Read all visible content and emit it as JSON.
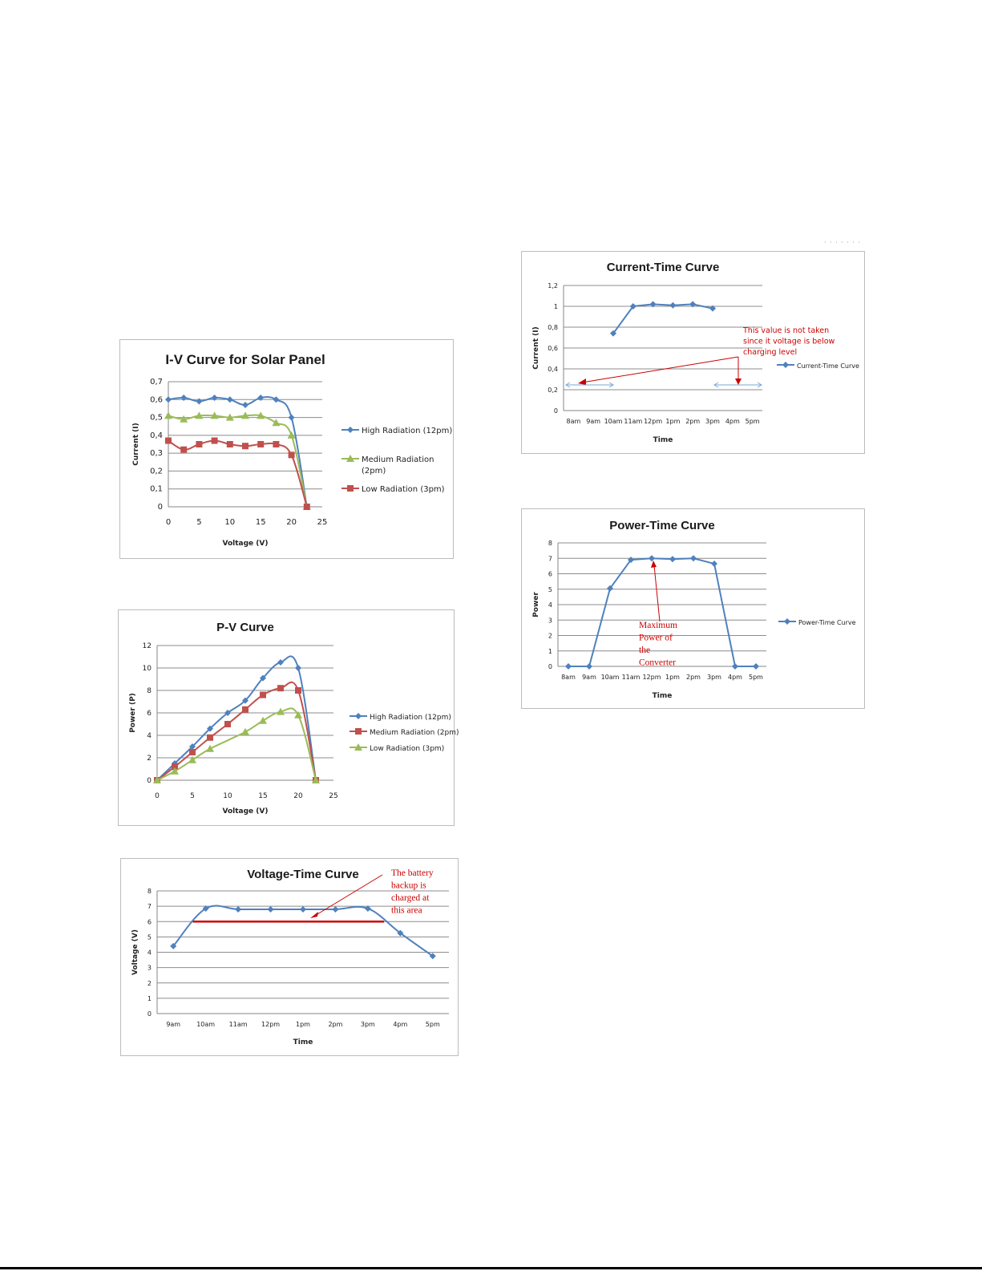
{
  "page_mark": "· · · · · · ·",
  "chart_data": [
    {
      "id": "iv",
      "type": "line",
      "title": "I-V Curve for Solar Panel",
      "xlabel": "Voltage (V)",
      "ylabel": "Current (I)",
      "xlim": [
        0,
        25
      ],
      "ylim": [
        0,
        0.7
      ],
      "xticks": [
        "0",
        "5",
        "10",
        "15",
        "20",
        "25"
      ],
      "yticks": [
        "0",
        "0,1",
        "0,2",
        "0,3",
        "0,4",
        "0,5",
        "0,6",
        "0,7"
      ],
      "grid": true,
      "legend": "right",
      "series": [
        {
          "name": "High Radiation (12pm)",
          "color": "#4f81bd",
          "marker": "diamond",
          "x": [
            0,
            2.5,
            5,
            7.5,
            10,
            12.5,
            15,
            17.5,
            20,
            22.5
          ],
          "y": [
            0.6,
            0.61,
            0.59,
            0.61,
            0.6,
            0.57,
            0.61,
            0.6,
            0.5,
            0
          ]
        },
        {
          "name": "Medium Radiation (2pm)",
          "color": "#9bbb59",
          "marker": "triangle",
          "x": [
            0,
            2.5,
            5,
            7.5,
            10,
            12.5,
            15,
            17.5,
            20,
            22.5
          ],
          "y": [
            0.51,
            0.49,
            0.51,
            0.51,
            0.5,
            0.51,
            0.51,
            0.47,
            0.4,
            0
          ]
        },
        {
          "name": "Low Radiation (3pm)",
          "color": "#c0504d",
          "marker": "square",
          "x": [
            0,
            2.5,
            5,
            7.5,
            10,
            12.5,
            15,
            17.5,
            20,
            22.5
          ],
          "y": [
            0.37,
            0.32,
            0.35,
            0.37,
            0.35,
            0.34,
            0.35,
            0.35,
            0.29,
            0
          ]
        }
      ]
    },
    {
      "id": "pv",
      "type": "line",
      "title": "P-V Curve",
      "xlabel": "Voltage (V)",
      "ylabel": "Power (P)",
      "xlim": [
        0,
        25
      ],
      "ylim": [
        0,
        12
      ],
      "xticks": [
        "0",
        "5",
        "10",
        "15",
        "20",
        "25"
      ],
      "yticks": [
        "0",
        "2",
        "4",
        "6",
        "8",
        "10",
        "12"
      ],
      "grid": true,
      "legend": "right",
      "series": [
        {
          "name": "High Radiation (12pm)",
          "color": "#4f81bd",
          "marker": "diamond",
          "x": [
            0,
            2.5,
            5,
            7.5,
            10,
            12.5,
            15,
            17.5,
            20,
            22.5
          ],
          "y": [
            0,
            1.5,
            3,
            4.6,
            6,
            7.1,
            9.1,
            10.5,
            10,
            0
          ]
        },
        {
          "name": "Medium Radiation (2pm)",
          "color": "#c0504d",
          "marker": "square",
          "x": [
            0,
            2.5,
            5,
            7.5,
            10,
            12.5,
            15,
            17.5,
            20,
            22.5
          ],
          "y": [
            0,
            1.2,
            2.5,
            3.8,
            5,
            6.3,
            7.6,
            8.2,
            8,
            0
          ]
        },
        {
          "name": "Low Radiation (3pm)",
          "color": "#9bbb59",
          "marker": "triangle",
          "x": [
            0,
            2.5,
            5,
            7.5,
            12.5,
            15,
            17.5,
            20,
            22.5
          ],
          "y": [
            0,
            0.8,
            1.8,
            2.8,
            4.3,
            5.3,
            6.1,
            5.8,
            0
          ]
        }
      ]
    },
    {
      "id": "vt",
      "type": "line",
      "title": "Voltage-Time Curve",
      "xlabel": "Time",
      "ylabel": "Voltage (V)",
      "categories": [
        "9am",
        "10am",
        "11am",
        "12pm",
        "1pm",
        "2pm",
        "3pm",
        "4pm",
        "5pm"
      ],
      "ylim": [
        0,
        8
      ],
      "yticks": [
        "0",
        "1",
        "2",
        "3",
        "4",
        "5",
        "6",
        "7",
        "8"
      ],
      "grid": true,
      "legend": "none",
      "series": [
        {
          "color": "#4f81bd",
          "marker": "diamond",
          "values": [
            4.4,
            6.85,
            6.8,
            6.8,
            6.8,
            6.8,
            6.85,
            5.25,
            3.75
          ]
        }
      ],
      "reference_line": {
        "y": 6,
        "color": "#cc0000"
      },
      "annotation": "The battery backup is charged at this area"
    },
    {
      "id": "ct",
      "type": "line",
      "title": "Current-Time Curve",
      "xlabel": "Time",
      "ylabel": "Current (I)",
      "categories": [
        "8am",
        "9am",
        "10am",
        "11am",
        "12pm",
        "1pm",
        "2pm",
        "3pm",
        "4pm",
        "5pm"
      ],
      "ylim": [
        0,
        1.2
      ],
      "yticks": [
        "0",
        "0,2",
        "0,4",
        "0,6",
        "0,8",
        "1",
        "1,2"
      ],
      "grid": true,
      "legend": "right",
      "series": [
        {
          "name": "Current-Time Curve",
          "color": "#4f81bd",
          "marker": "diamond",
          "values": [
            null,
            null,
            0.74,
            1.0,
            1.02,
            1.01,
            1.02,
            0.98,
            null,
            null
          ]
        }
      ],
      "annotation": "This value is not taken since it voltage is below charging level"
    },
    {
      "id": "pt",
      "type": "line",
      "title": "Power-Time Curve",
      "xlabel": "Time",
      "ylabel": "Power",
      "categories": [
        "8am",
        "9am",
        "10am",
        "11am",
        "12pm",
        "1pm",
        "2pm",
        "3pm",
        "4pm",
        "5pm"
      ],
      "ylim": [
        0,
        8
      ],
      "yticks": [
        "0",
        "1",
        "2",
        "3",
        "4",
        "5",
        "6",
        "7",
        "8"
      ],
      "grid": true,
      "legend": "right",
      "series": [
        {
          "name": "Power-Time Curve",
          "color": "#4f81bd",
          "marker": "diamond",
          "values": [
            0,
            0,
            5.05,
            6.9,
            7.0,
            6.95,
            7.0,
            6.65,
            0,
            0
          ]
        }
      ],
      "annotation": "Maximum Power of the Converter"
    }
  ]
}
